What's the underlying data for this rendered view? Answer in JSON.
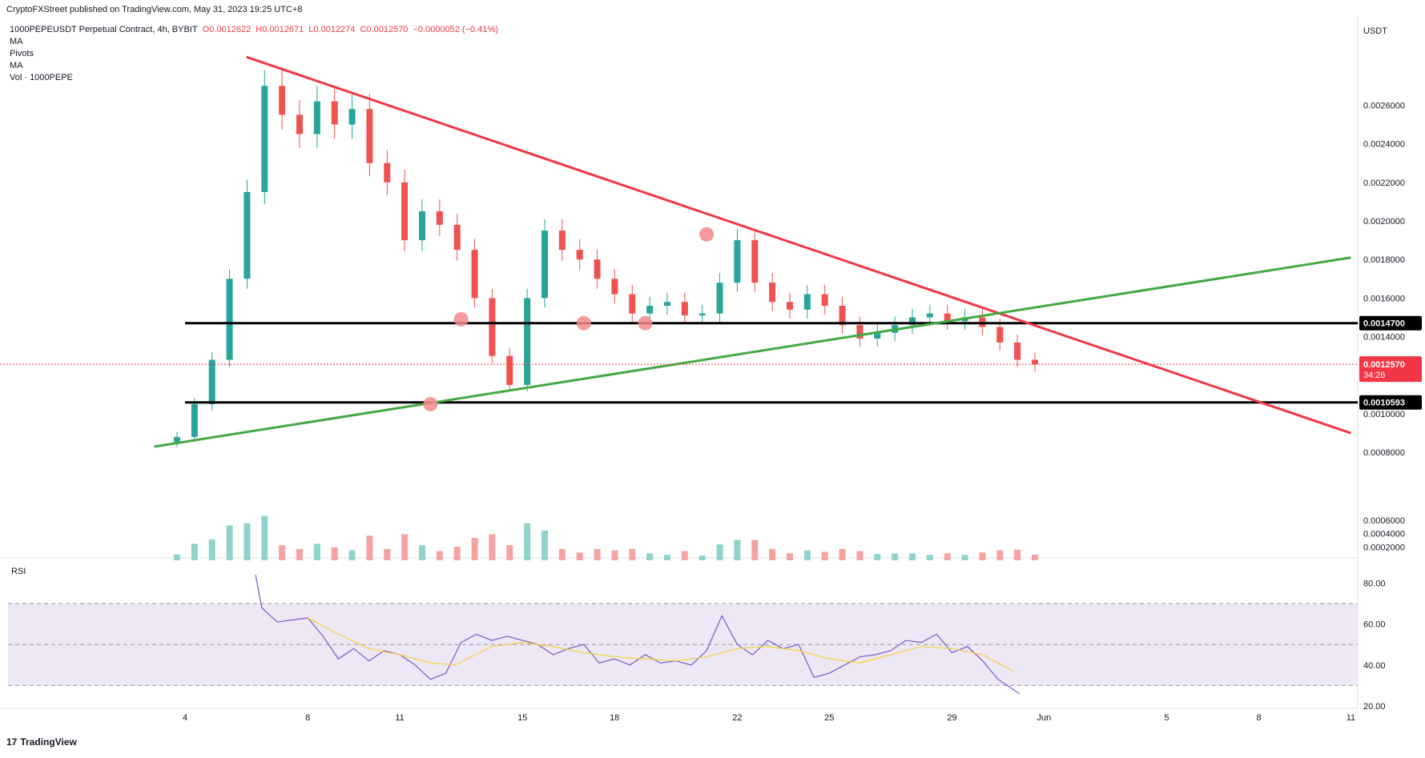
{
  "publisher_line": "CryptoFXStreet published on TradingView.com, May 31, 2023 19:25 UTC+8",
  "legend": {
    "symbol": "1000PEPEUSDT Perpetual Contract, 4h, BYBIT",
    "open": "O0.0012622",
    "high": "H0.0012671",
    "low": "L0.0012274",
    "close": "C0.0012570",
    "change": "−0.0000052 (−0.41%)",
    "indicators": [
      "MA",
      "Pivots",
      "MA",
      "Vol · 1000PEPE"
    ]
  },
  "rsi_label": "RSI",
  "footer": "TradingView",
  "colors": {
    "up": "#26a69a",
    "down": "#ef5350",
    "up_volume": "#8fd3cb",
    "down_volume": "#f5a3a1",
    "resistance_line": "#f23645",
    "support_line": "#43a843",
    "level_line": "#000000",
    "rsi_line": "#7e57c2",
    "rsi_ma": "#f5d13d",
    "rsi_band": "#ede7f6",
    "marker": "#f28b8b",
    "price_label": "#f23645"
  },
  "chart_data": {
    "type": "candlestick",
    "quote_currency": "USDT",
    "price_ticks": [
      "0.0008000",
      "0.0010000",
      "0.0012000",
      "0.0014000",
      "0.0016000",
      "0.0018000",
      "0.0020000",
      "0.0022000",
      "0.0024000",
      "0.0026000",
      "0.0002000",
      "0.0004000",
      "0.0006000"
    ],
    "price_axis": {
      "min": 0.0008,
      "max": 0.0026,
      "step": 0.0002
    },
    "volume_axis_ticks": [
      0.0002,
      0.0004,
      0.0006
    ],
    "x_tick_labels": [
      "4",
      "8",
      "11",
      "15",
      "18",
      "22",
      "25",
      "29",
      "Jun",
      "5",
      "8",
      "11"
    ],
    "x_tick_dates": [
      "2023-05-04",
      "2023-05-08",
      "2023-05-11",
      "2023-05-15",
      "2023-05-18",
      "2023-05-22",
      "2023-05-25",
      "2023-05-29",
      "2023-06-01",
      "2023-06-05",
      "2023-06-08",
      "2023-06-11"
    ],
    "candles_4h_close": [
      {
        "date": "2023-05-03",
        "close": 0.00088
      },
      {
        "date": "2023-05-04",
        "close": 0.00105
      },
      {
        "date": "2023-05-04",
        "close": 0.00128
      },
      {
        "date": "2023-05-05",
        "close": 0.0017
      },
      {
        "date": "2023-05-05",
        "close": 0.00215
      },
      {
        "date": "2023-05-06",
        "close": 0.0027
      },
      {
        "date": "2023-05-06",
        "close": 0.00255
      },
      {
        "date": "2023-05-07",
        "close": 0.00245
      },
      {
        "date": "2023-05-07",
        "close": 0.00262
      },
      {
        "date": "2023-05-08",
        "close": 0.0025
      },
      {
        "date": "2023-05-08",
        "close": 0.00258
      },
      {
        "date": "2023-05-09",
        "close": 0.0023
      },
      {
        "date": "2023-05-09",
        "close": 0.0022
      },
      {
        "date": "2023-05-10",
        "close": 0.0019
      },
      {
        "date": "2023-05-10",
        "close": 0.00205
      },
      {
        "date": "2023-05-11",
        "close": 0.00198
      },
      {
        "date": "2023-05-11",
        "close": 0.00185
      },
      {
        "date": "2023-05-12",
        "close": 0.0016
      },
      {
        "date": "2023-05-12",
        "close": 0.0013
      },
      {
        "date": "2023-05-13",
        "close": 0.00115
      },
      {
        "date": "2023-05-13",
        "close": 0.0016
      },
      {
        "date": "2023-05-14",
        "close": 0.00195
      },
      {
        "date": "2023-05-14",
        "close": 0.00185
      },
      {
        "date": "2023-05-15",
        "close": 0.0018
      },
      {
        "date": "2023-05-16",
        "close": 0.0017
      },
      {
        "date": "2023-05-17",
        "close": 0.00162
      },
      {
        "date": "2023-05-18",
        "close": 0.00152
      },
      {
        "date": "2023-05-18",
        "close": 0.00156
      },
      {
        "date": "2023-05-19",
        "close": 0.00158
      },
      {
        "date": "2023-05-20",
        "close": 0.00151
      },
      {
        "date": "2023-05-20",
        "close": 0.00152
      },
      {
        "date": "2023-05-21",
        "close": 0.00168
      },
      {
        "date": "2023-05-21",
        "close": 0.0019
      },
      {
        "date": "2023-05-22",
        "close": 0.00168
      },
      {
        "date": "2023-05-22",
        "close": 0.00158
      },
      {
        "date": "2023-05-23",
        "close": 0.00154
      },
      {
        "date": "2023-05-23",
        "close": 0.00162
      },
      {
        "date": "2023-05-24",
        "close": 0.00156
      },
      {
        "date": "2023-05-24",
        "close": 0.00146
      },
      {
        "date": "2023-05-25",
        "close": 0.00139
      },
      {
        "date": "2023-05-26",
        "close": 0.00142
      },
      {
        "date": "2023-05-27",
        "close": 0.00146
      },
      {
        "date": "2023-05-28",
        "close": 0.0015
      },
      {
        "date": "2023-05-28",
        "close": 0.00152
      },
      {
        "date": "2023-05-29",
        "close": 0.00148
      },
      {
        "date": "2023-05-29",
        "close": 0.0015
      },
      {
        "date": "2023-05-30",
        "close": 0.00145
      },
      {
        "date": "2023-05-30",
        "close": 0.00137
      },
      {
        "date": "2023-05-31",
        "close": 0.00128
      },
      {
        "date": "2023-05-31",
        "close": 0.001257
      }
    ],
    "horizontal_levels": [
      {
        "label": "0.0014700",
        "value": 0.00147,
        "from": "2023-05-04"
      },
      {
        "label": "0.0010593",
        "value": 0.0010593,
        "from": "2023-05-04"
      }
    ],
    "trendlines": [
      {
        "name": "descending resistance",
        "from": {
          "date": "2023-05-06",
          "value": 0.00285
        },
        "to": {
          "date": "2023-06-11",
          "value": 0.0009
        }
      },
      {
        "name": "ascending support",
        "from": {
          "date": "2023-05-03",
          "value": 0.00083
        },
        "to": {
          "date": "2023-06-11",
          "value": 0.00181
        }
      }
    ],
    "touch_markers": [
      {
        "date": "2023-05-12",
        "value": 0.00105
      },
      {
        "date": "2023-05-13",
        "value": 0.00149
      },
      {
        "date": "2023-05-17",
        "value": 0.00147
      },
      {
        "date": "2023-05-19",
        "value": 0.00147
      },
      {
        "date": "2023-05-21",
        "value": 0.00193
      }
    ],
    "current_price": {
      "label": "0.0012570",
      "countdown": "34:26",
      "value": 0.001257
    },
    "rsi": {
      "ticks": [
        "20.00",
        "40.00",
        "60.00",
        "80.00"
      ],
      "range": [
        20,
        80
      ],
      "band": [
        30,
        70
      ],
      "midline": 50,
      "values": [
        [
          6.3,
          84
        ],
        [
          6.5,
          68
        ],
        [
          7.0,
          61
        ],
        [
          7.5,
          62
        ],
        [
          8.0,
          63
        ],
        [
          8.5,
          54
        ],
        [
          9.0,
          43
        ],
        [
          9.5,
          48
        ],
        [
          10.0,
          42
        ],
        [
          10.5,
          47
        ],
        [
          11.0,
          45
        ],
        [
          11.5,
          40
        ],
        [
          12.0,
          33
        ],
        [
          12.5,
          36
        ],
        [
          13.0,
          51
        ],
        [
          13.5,
          55
        ],
        [
          14.0,
          52
        ],
        [
          14.5,
          54
        ],
        [
          15.0,
          52
        ],
        [
          15.5,
          50
        ],
        [
          16.0,
          45
        ],
        [
          16.5,
          48
        ],
        [
          17.0,
          50
        ],
        [
          17.5,
          41
        ],
        [
          18.0,
          43
        ],
        [
          18.5,
          40
        ],
        [
          19.0,
          45
        ],
        [
          19.5,
          41
        ],
        [
          20.0,
          42
        ],
        [
          20.5,
          40
        ],
        [
          21.0,
          47
        ],
        [
          21.5,
          64
        ],
        [
          22.0,
          50
        ],
        [
          22.5,
          45
        ],
        [
          23.0,
          52
        ],
        [
          23.5,
          48
        ],
        [
          24.0,
          50
        ],
        [
          24.5,
          34
        ],
        [
          25.0,
          36
        ],
        [
          25.5,
          40
        ],
        [
          26.0,
          44
        ],
        [
          26.5,
          45
        ],
        [
          27.0,
          47
        ],
        [
          27.5,
          52
        ],
        [
          28.0,
          51
        ],
        [
          28.5,
          55
        ],
        [
          29.0,
          46
        ],
        [
          29.5,
          49
        ],
        [
          30.0,
          42
        ],
        [
          30.5,
          33
        ],
        [
          31.0,
          28
        ],
        [
          31.2,
          26
        ]
      ],
      "ma_values": [
        [
          8.0,
          63
        ],
        [
          9.0,
          55
        ],
        [
          10.0,
          48
        ],
        [
          11.0,
          45
        ],
        [
          12.0,
          41
        ],
        [
          12.8,
          40
        ],
        [
          14.0,
          49
        ],
        [
          15.0,
          51
        ],
        [
          16.0,
          49
        ],
        [
          17.0,
          46
        ],
        [
          18.0,
          44
        ],
        [
          19.0,
          43
        ],
        [
          20.0,
          42
        ],
        [
          21.0,
          44
        ],
        [
          22.0,
          48
        ],
        [
          23.0,
          49
        ],
        [
          24.0,
          47
        ],
        [
          25.0,
          43
        ],
        [
          26.0,
          41
        ],
        [
          27.0,
          45
        ],
        [
          28.0,
          49
        ],
        [
          29.0,
          48
        ],
        [
          30.0,
          45
        ],
        [
          31.0,
          37
        ]
      ]
    }
  }
}
